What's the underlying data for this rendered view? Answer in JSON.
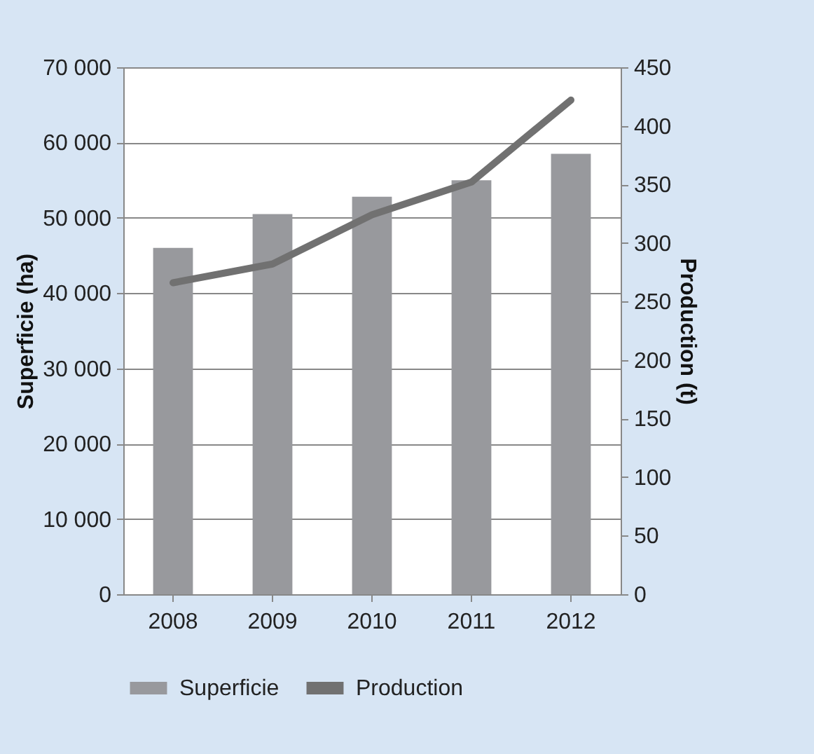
{
  "chart_data": {
    "type": "bar",
    "categories": [
      "2008",
      "2009",
      "2010",
      "2011",
      "2012"
    ],
    "ylabel": "Superficie (ha)",
    "y2label": "Production (t)",
    "series": [
      {
        "name": "Superficie",
        "color": "#98999d",
        "values": [
          46000,
          50500,
          52800,
          55000,
          58500
        ]
      },
      {
        "name": "Production",
        "type": "line",
        "axis": "y2",
        "color": "#717171",
        "values": [
          266,
          282,
          324,
          352,
          422
        ]
      }
    ],
    "ylim": [
      0,
      70000
    ],
    "yticks": [
      {
        "value": 0,
        "label": "0"
      },
      {
        "value": 10000,
        "label": "10 000"
      },
      {
        "value": 20000,
        "label": "20 000"
      },
      {
        "value": 30000,
        "label": "30 000"
      },
      {
        "value": 40000,
        "label": "40 000"
      },
      {
        "value": 50000,
        "label": "50 000"
      },
      {
        "value": 60000,
        "label": "60 000"
      },
      {
        "value": 70000,
        "label": "70 000"
      }
    ],
    "y2lim": [
      0,
      450
    ],
    "y2ticks": [
      0,
      50,
      100,
      150,
      200,
      250,
      300,
      350,
      400,
      450
    ],
    "grid": "y",
    "legend": "bottom",
    "marker": "none"
  }
}
